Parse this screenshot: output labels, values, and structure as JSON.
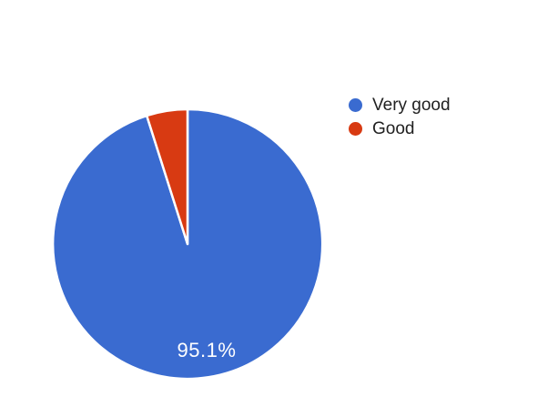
{
  "chart_data": {
    "type": "pie",
    "title": "",
    "series": [
      {
        "label": "Very good",
        "value": 95.1,
        "color": "#3a6bd0"
      },
      {
        "label": "Good",
        "value": 4.9,
        "color": "#d83a12"
      }
    ],
    "pie_label": "95.1%",
    "pie_label_color": "#ffffff",
    "slice_border_color": "#ffffff",
    "legend_position": "right",
    "legend_text_color": "#212121",
    "start_angle_deg": 0,
    "direction": "clockwise",
    "background": "#ffffff"
  }
}
